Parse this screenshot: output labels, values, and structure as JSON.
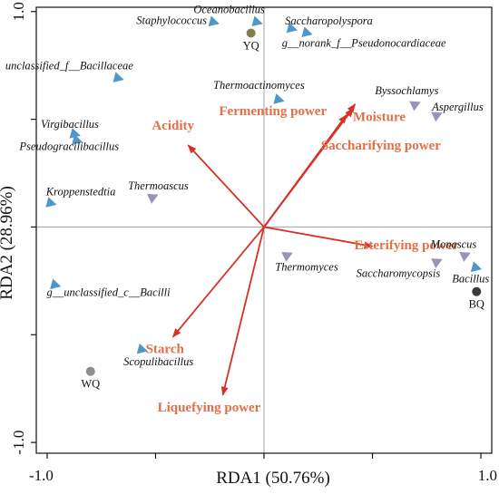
{
  "chart_data": {
    "type": "scatter",
    "subtype": "rda-biplot",
    "title": "",
    "xlabel": "RDA1 (50.76%)",
    "ylabel": "RDA2 (28.96%)",
    "xlim": [
      -1.05,
      1.05
    ],
    "ylim": [
      -1.05,
      1.02
    ],
    "xticks": [
      {
        "value": -1.0,
        "label": "-1.0"
      },
      {
        "value": -0.5,
        "label": ""
      },
      {
        "value": 0.0,
        "label": ""
      },
      {
        "value": 0.5,
        "label": ""
      },
      {
        "value": 1.0,
        "label": "1.0"
      }
    ],
    "yticks": [
      {
        "value": -1.0,
        "label": "-1.0"
      },
      {
        "value": -0.5,
        "label": ""
      },
      {
        "value": 0.0,
        "label": ""
      },
      {
        "value": 0.5,
        "label": ""
      },
      {
        "value": 1.0,
        "label": "1.0"
      }
    ],
    "grid": false,
    "zero_lines": true,
    "env_arrows": [
      {
        "name": "Fermenting power",
        "x": 0.42,
        "y": 0.57
      },
      {
        "name": "Moisture",
        "x": 0.41,
        "y": 0.55
      },
      {
        "name": "Saccharifying power",
        "x": 0.38,
        "y": 0.52
      },
      {
        "name": "Acidity",
        "x": -0.35,
        "y": 0.38
      },
      {
        "name": "Esterifying power",
        "x": 0.5,
        "y": -0.09
      },
      {
        "name": "Starch",
        "x": -0.42,
        "y": -0.51
      },
      {
        "name": "Liquefying power",
        "x": -0.19,
        "y": -0.78
      }
    ],
    "species": [
      {
        "name": "Staphylococcus",
        "x": -0.23,
        "y": 0.95,
        "group": "bacteria"
      },
      {
        "name": "Oceanobacillus",
        "x": -0.03,
        "y": 0.95,
        "group": "bacteria"
      },
      {
        "name": "Saccharopolyspora",
        "x": 0.13,
        "y": 0.92,
        "group": "bacteria"
      },
      {
        "name": "g__norank_f__Pseudonocardiaceae",
        "x": 0.2,
        "y": 0.9,
        "group": "bacteria"
      },
      {
        "name": "unclassified_f__Bacillaceae",
        "x": -0.67,
        "y": 0.69,
        "group": "bacteria"
      },
      {
        "name": "Thermoactinomyces",
        "x": 0.07,
        "y": 0.59,
        "group": "bacteria"
      },
      {
        "name": "Byssochlamys",
        "x": 0.7,
        "y": 0.57,
        "group": "fungi"
      },
      {
        "name": "Aspergillus",
        "x": 0.8,
        "y": 0.52,
        "group": "fungi"
      },
      {
        "name": "Virgibacillus",
        "x": -0.87,
        "y": 0.43,
        "group": "bacteria"
      },
      {
        "name": "Pseudogracilibacillus",
        "x": -0.86,
        "y": 0.4,
        "group": "bacteria"
      },
      {
        "name": "Thermoascus",
        "x": -0.51,
        "y": 0.14,
        "group": "fungi"
      },
      {
        "name": "Kroppenstedtia",
        "x": -0.98,
        "y": 0.11,
        "group": "bacteria"
      },
      {
        "name": "Thermomyces",
        "x": 0.11,
        "y": -0.13,
        "group": "fungi"
      },
      {
        "name": "Monascus",
        "x": 0.93,
        "y": -0.13,
        "group": "fungi"
      },
      {
        "name": "Saccharomycopsis",
        "x": 0.8,
        "y": -0.16,
        "group": "fungi"
      },
      {
        "name": "Bacillus",
        "x": 0.98,
        "y": -0.19,
        "group": "bacteria"
      },
      {
        "name": "g__unclassified_c__Bacilli",
        "x": -0.96,
        "y": -0.27,
        "group": "bacteria"
      },
      {
        "name": "Scopulibacillus",
        "x": -0.56,
        "y": -0.57,
        "group": "bacteria"
      }
    ],
    "samples": [
      {
        "name": "YQ",
        "x": -0.06,
        "y": 0.9,
        "color": "#7e7e4e"
      },
      {
        "name": "BQ",
        "x": 0.98,
        "y": -0.3,
        "color": "#3a3a3a"
      },
      {
        "name": "WQ",
        "x": -0.8,
        "y": -0.67,
        "color": "#8e8e8e"
      }
    ],
    "colors": {
      "arrow": "#d73027",
      "env_label": "#e26f46",
      "bacteria": "#4f97c8",
      "fungi": "#9b93b8",
      "axes": "#111111",
      "zero_line": "#a0a0a0"
    }
  }
}
